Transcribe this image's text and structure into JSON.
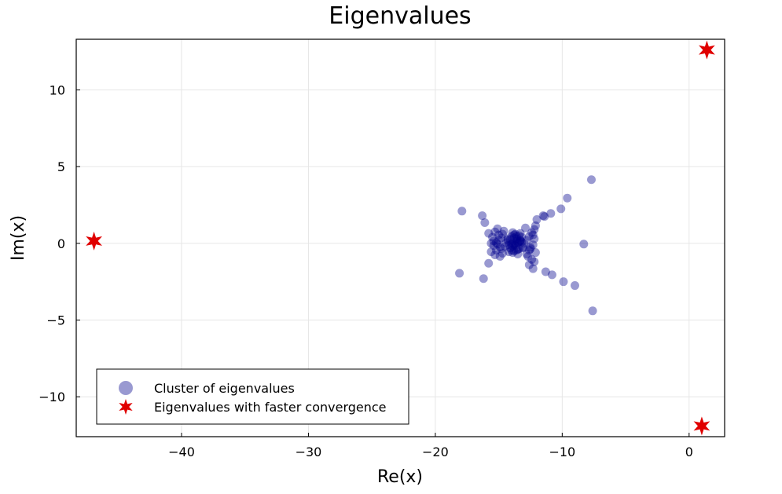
{
  "chart_data": {
    "type": "scatter",
    "title": "Eigenvalues",
    "xlabel": "Re(x)",
    "ylabel": "Im(x)",
    "xlim": [
      -48.3,
      2.8
    ],
    "ylim": [
      -12.6,
      13.3
    ],
    "xticks": [
      -40,
      -30,
      -20,
      -10,
      0
    ],
    "yticks": [
      -10,
      -5,
      0,
      5,
      10
    ],
    "xtick_labels": [
      "−40",
      "−30",
      "−20",
      "−10",
      "0"
    ],
    "ytick_labels": [
      "−10",
      "−5",
      "0",
      "5",
      "10"
    ],
    "grid": true,
    "legend_position": "bottom-left",
    "colors": {
      "cluster": "#00008b",
      "fast": "#e00000"
    },
    "series": [
      {
        "name": "Cluster of eigenvalues",
        "marker": "circle",
        "x": [
          -7.7,
          -9.6,
          -10.1,
          -10.9,
          -11.4,
          -11.5,
          -12.0,
          -17.9,
          -16.3,
          -16.1,
          -15.8,
          -8.3,
          -7.6,
          -9.0,
          -9.9,
          -10.8,
          -11.3,
          -12.3,
          -15.8,
          -16.2,
          -18.1,
          -12.1,
          -12.2,
          -12.4,
          -12.6,
          -12.8,
          -12.3,
          -12.5,
          -12.1,
          -12.7,
          -12.4,
          -12.2,
          -12.6,
          -12.9,
          -12.3,
          -12.5,
          -12.8,
          -12.2,
          -12.6,
          -15.3,
          -15.0,
          -14.8,
          -15.4,
          -15.1,
          -14.9,
          -15.2,
          -14.7,
          -15.5,
          -14.6,
          -15.1,
          -14.9,
          -15.3,
          -14.7,
          -15.0,
          -14.8,
          -15.2,
          -15.4,
          -15.6,
          -15.6,
          -13.9,
          -13.6,
          -14.1,
          -13.4,
          -13.8,
          -14.3,
          -13.2,
          -13.7,
          -14.0,
          -13.5,
          -13.3,
          -13.9,
          -14.2,
          -13.6,
          -13.1,
          -14.4,
          -13.8,
          -13.4,
          -13.7,
          -14.1,
          -13.3,
          -13.9,
          -13.5,
          -14.0,
          -13.2,
          -13.6,
          -13.8,
          -14.2,
          -13.4,
          -13.0,
          -14.5,
          -13.7,
          -13.9,
          -13.5,
          -14.3,
          -13.1,
          -13.6,
          -14.0,
          -13.3,
          -13.8
        ],
        "y": [
          4.15,
          2.95,
          2.25,
          1.95,
          1.75,
          1.8,
          1.55,
          2.1,
          1.8,
          1.35,
          0.65,
          -0.05,
          -4.4,
          -2.75,
          -2.5,
          -2.05,
          -1.85,
          -1.65,
          -1.3,
          -2.3,
          -1.95,
          1.15,
          0.9,
          0.7,
          0.45,
          0.2,
          -0.1,
          -0.35,
          -0.6,
          -0.85,
          -1.05,
          -1.2,
          -1.4,
          1.0,
          0.55,
          -0.25,
          -0.7,
          0.3,
          -0.45,
          0.75,
          0.55,
          0.35,
          0.15,
          -0.05,
          -0.25,
          -0.45,
          -0.65,
          0.4,
          0.8,
          0.95,
          -0.85,
          -0.75,
          0.6,
          0.2,
          -0.35,
          0.05,
          -0.15,
          0.0,
          -0.55,
          0.0,
          0.3,
          -0.3,
          0.5,
          -0.5,
          0.2,
          0.1,
          -0.15,
          0.45,
          -0.4,
          0.65,
          -0.6,
          -0.1,
          0.15,
          -0.25,
          0.05,
          0.35,
          -0.35,
          0.0,
          0.25,
          0.2,
          -0.2,
          0.05,
          -0.05,
          0.4,
          -0.45,
          0.55,
          -0.55,
          0.1,
          0.0,
          -0.2,
          0.6,
          0.7,
          -0.7,
          0.3,
          -0.3,
          0.45,
          -0.45,
          0.15,
          -0.1
        ]
      },
      {
        "name": "Eigenvalues with faster convergence",
        "marker": "star",
        "x": [
          -46.9,
          1.4,
          1.0
        ],
        "y": [
          0.15,
          12.6,
          -11.9
        ]
      }
    ]
  }
}
